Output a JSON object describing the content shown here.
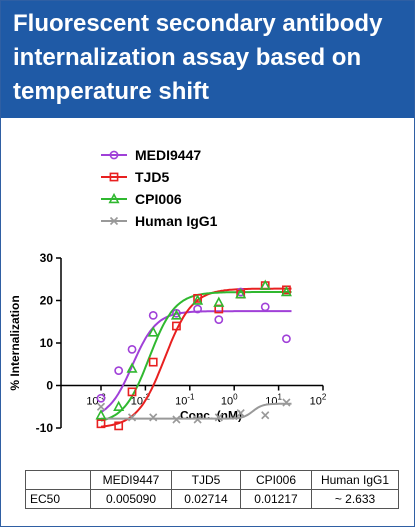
{
  "header": {
    "title": "Fluorescent secondary antibody internalization assay based on temperature shift",
    "background": "#1f5aa6",
    "text_color": "#ffffff"
  },
  "chart_data": {
    "type": "scatter",
    "title": "",
    "xlabel": "Conc. (nM)",
    "ylabel": "% Internalization",
    "x_scale": "log",
    "xlim": [
      0.001,
      100
    ],
    "ylim": [
      -10,
      30
    ],
    "x_ticks": [
      {
        "value": 0.001,
        "base": "10",
        "exp": "-3"
      },
      {
        "value": 0.01,
        "base": "10",
        "exp": "-2"
      },
      {
        "value": 0.1,
        "base": "10",
        "exp": "-1"
      },
      {
        "value": 1,
        "base": "10",
        "exp": "0"
      },
      {
        "value": 10,
        "base": "10",
        "exp": "1"
      },
      {
        "value": 100,
        "base": "10",
        "exp": "2"
      }
    ],
    "y_ticks": [
      -10,
      0,
      10,
      20,
      30
    ],
    "legend_position": "top",
    "series": [
      {
        "name": "MEDI9447",
        "marker": "circle",
        "color": "#a040d8",
        "x": [
          0.001,
          0.0025,
          0.005,
          0.015,
          0.05,
          0.15,
          0.45,
          1.4,
          5,
          15
        ],
        "y": [
          -3,
          3.5,
          8.5,
          16.5,
          17,
          18,
          15.5,
          22,
          18.5,
          11
        ],
        "fit": {
          "bottom": -8,
          "top": 17.5,
          "ec50": 0.00509,
          "hill": 1.6
        }
      },
      {
        "name": "TJD5",
        "marker": "square",
        "color": "#e82020",
        "x": [
          0.001,
          0.0025,
          0.005,
          0.015,
          0.05,
          0.15,
          0.45,
          1.4,
          5,
          15
        ],
        "y": [
          -9,
          -9.5,
          -1.5,
          5.5,
          14,
          20.5,
          18,
          21.5,
          23.5,
          22.5
        ],
        "fit": {
          "bottom": -10,
          "top": 22.8,
          "ec50": 0.02714,
          "hill": 1.4
        }
      },
      {
        "name": "CPI006",
        "marker": "triangle",
        "color": "#30b830",
        "x": [
          0.001,
          0.0025,
          0.005,
          0.015,
          0.05,
          0.15,
          0.45,
          1.4,
          5,
          15
        ],
        "y": [
          -7,
          -5,
          4,
          12.5,
          16.5,
          20,
          19.5,
          21.5,
          23.5,
          22
        ],
        "fit": {
          "bottom": -9,
          "top": 22,
          "ec50": 0.01217,
          "hill": 1.5
        }
      },
      {
        "name": "Human IgG1",
        "marker": "cross",
        "color": "#999999",
        "x": [
          0.001,
          0.005,
          0.015,
          0.05,
          0.15,
          0.45,
          1.4,
          5,
          15
        ],
        "y": [
          -5,
          -7.5,
          -7.5,
          -8,
          -8,
          -7.5,
          -6.5,
          -7,
          -4
        ],
        "fit": {
          "bottom": -7.8,
          "top": -4.3,
          "ec50": 2.633,
          "hill": 4
        }
      }
    ]
  },
  "table": {
    "headers": [
      "",
      "MEDI9447",
      "TJD5",
      "CPI006",
      "Human IgG1"
    ],
    "rows": [
      [
        "EC50",
        "0.005090",
        "0.02714",
        "0.01217",
        "~ 2.633"
      ]
    ]
  }
}
